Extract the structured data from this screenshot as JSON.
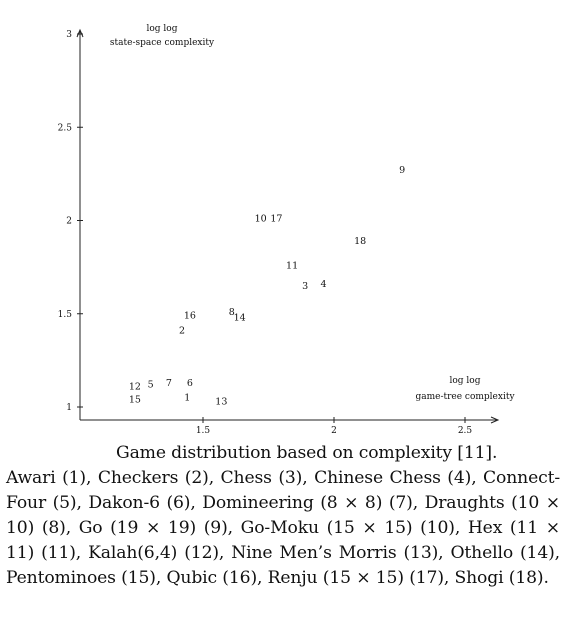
{
  "chart_data": {
    "type": "scatter",
    "x_axis_title": [
      "log log",
      "game-tree complexity"
    ],
    "y_axis_title": [
      "log log",
      "state-space complexity"
    ],
    "xticks": [
      "1.5",
      "2",
      "2.5"
    ],
    "yticks": [
      "1",
      "1.5",
      "2",
      "2.5",
      "3"
    ],
    "xticks_values": [
      1.5,
      2,
      2.5
    ],
    "yticks_values": [
      1,
      1.5,
      2,
      2.5,
      3
    ],
    "xlim": [
      1.1,
      2.68
    ],
    "ylim": [
      0.94,
      3.0
    ],
    "grid": false,
    "points": [
      {
        "label": "1",
        "x": 1.44,
        "y": 1.05
      },
      {
        "label": "2",
        "x": 1.42,
        "y": 1.41
      },
      {
        "label": "3",
        "x": 1.89,
        "y": 1.65
      },
      {
        "label": "4",
        "x": 1.96,
        "y": 1.66
      },
      {
        "label": "5",
        "x": 1.3,
        "y": 1.12
      },
      {
        "label": "6",
        "x": 1.45,
        "y": 1.13
      },
      {
        "label": "7",
        "x": 1.37,
        "y": 1.13
      },
      {
        "label": "8",
        "x": 1.61,
        "y": 1.51
      },
      {
        "label": "9",
        "x": 2.26,
        "y": 2.27
      },
      {
        "label": "10",
        "x": 1.72,
        "y": 2.01
      },
      {
        "label": "11",
        "x": 1.84,
        "y": 1.76
      },
      {
        "label": "12",
        "x": 1.24,
        "y": 1.11
      },
      {
        "label": "13",
        "x": 1.57,
        "y": 1.03
      },
      {
        "label": "14",
        "x": 1.64,
        "y": 1.48
      },
      {
        "label": "15",
        "x": 1.24,
        "y": 1.04
      },
      {
        "label": "16",
        "x": 1.45,
        "y": 1.49
      },
      {
        "label": "17",
        "x": 1.78,
        "y": 2.01
      },
      {
        "label": "18",
        "x": 2.1,
        "y": 1.89
      }
    ]
  },
  "caption": {
    "lead": "Game distribution based on complexity [11].",
    "body": "Awari (1), Checkers (2), Chess (3), Chinese Chess (4), Connect-Four (5), Dakon-6 (6), Domineering (8 × 8) (7), Draughts (10 × 10) (8), Go (19 × 19) (9), Go-Moku (15 × 15) (10), Hex (11 × 11) (11), Kalah(6,4) (12), Nine Men’s Morris (13), Othello (14), Pentominoes (15), Qubic (16), Renju (15 × 15) (17), Shogi (18)."
  }
}
